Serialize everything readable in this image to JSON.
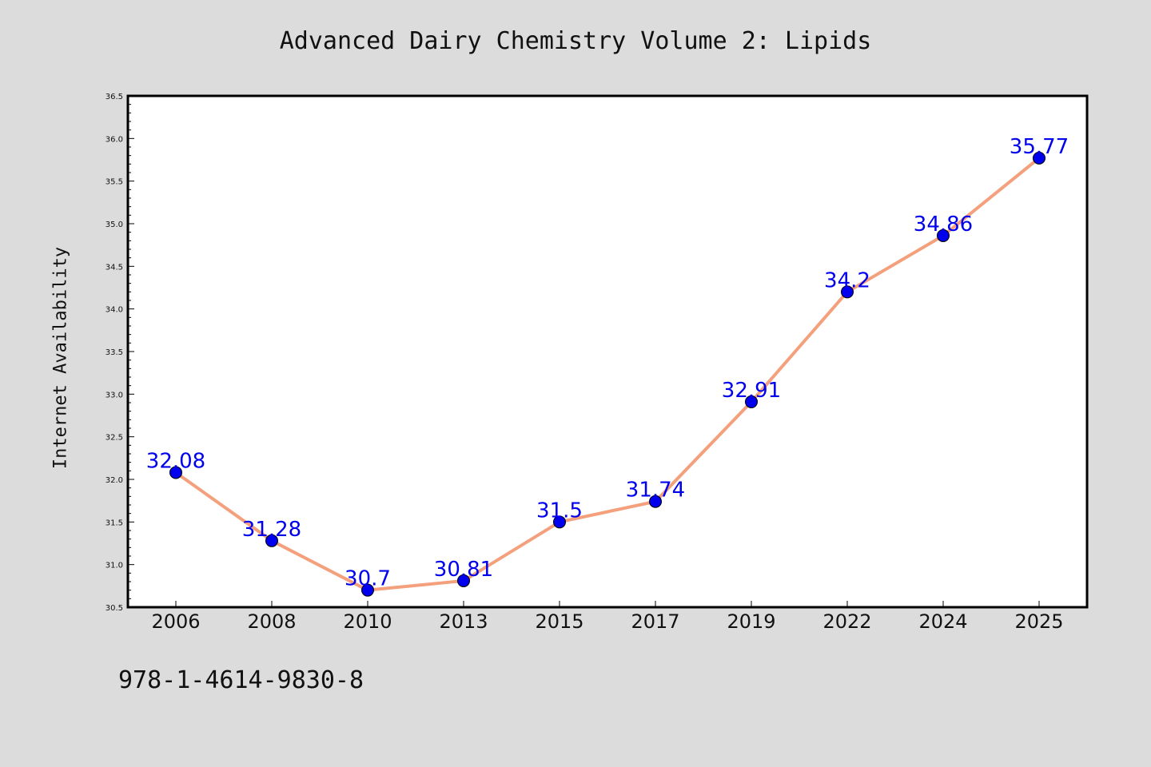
{
  "chart_data": {
    "type": "line",
    "title": "Advanced Dairy Chemistry Volume 2: Lipids",
    "xlabel": "",
    "ylabel": "Internet Availability",
    "categories": [
      "2006",
      "2008",
      "2010",
      "2013",
      "2015",
      "2017",
      "2019",
      "2022",
      "2024",
      "2025"
    ],
    "series": [
      {
        "values": [
          32.08,
          31.28,
          30.7,
          30.81,
          31.5,
          31.74,
          32.91,
          34.2,
          34.86,
          35.77
        ],
        "labels": [
          "32.08",
          "31.28",
          "30.7",
          "30.81",
          "31.5",
          "31.74",
          "32.91",
          "34.2",
          "34.86",
          "35.77"
        ],
        "line_color": "#f4a07c",
        "marker_color": "#0000ee"
      }
    ],
    "ylim": [
      30.5,
      36.5
    ],
    "yticks": [
      "30.5",
      "31.0",
      "31.5",
      "32.0",
      "32.5",
      "33.0",
      "33.5",
      "34.0",
      "34.5",
      "35.0",
      "35.5",
      "36.0",
      "36.5"
    ],
    "grid": false,
    "legend": "none",
    "annotation": "978-1-4614-9830-8",
    "background_color": "#dcdcdc",
    "plot_background_color": "#ffffff"
  }
}
